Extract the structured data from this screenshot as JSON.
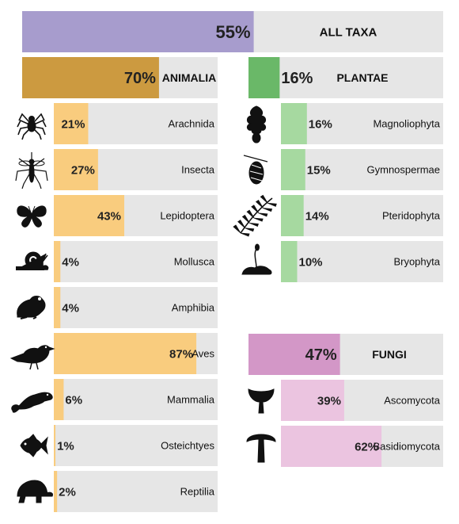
{
  "colors": {
    "track": "#e6e6e6",
    "all": "#a79ccd",
    "animalia_head": "#cc9a40",
    "animalia_sub": "#f9cc7e",
    "plantae_head": "#6ab868",
    "plantae_sub": "#a6d9a0",
    "fungi_head": "#d397c7",
    "fungi_sub": "#ebc4e0",
    "icon": "#111111"
  },
  "chart_data": {
    "type": "bar",
    "orientation": "horizontal",
    "xlim": [
      0,
      100
    ],
    "unit": "%",
    "all_taxa": {
      "label": "ALL TAXA",
      "value": 55,
      "value_label": "55%"
    },
    "groups": [
      {
        "key": "animalia",
        "label": "ANIMALIA",
        "value": 70,
        "value_label": "70%",
        "items": [
          {
            "label": "Arachnida",
            "value": 21,
            "value_label": "21%",
            "icon": "spider-icon"
          },
          {
            "label": "Insecta",
            "value": 27,
            "value_label": "27%",
            "icon": "mosquito-icon"
          },
          {
            "label": "Lepidoptera",
            "value": 43,
            "value_label": "43%",
            "icon": "butterfly-icon"
          },
          {
            "label": "Mollusca",
            "value": 4,
            "value_label": "4%",
            "icon": "snail-icon"
          },
          {
            "label": "Amphibia",
            "value": 4,
            "value_label": "4%",
            "icon": "frog-icon"
          },
          {
            "label": "Aves",
            "value": 87,
            "value_label": "87%",
            "icon": "bird-icon"
          },
          {
            "label": "Mammalia",
            "value": 6,
            "value_label": "6%",
            "icon": "otter-icon"
          },
          {
            "label": "Osteichtyes",
            "value": 1,
            "value_label": "1%",
            "icon": "fish-icon"
          },
          {
            "label": "Reptilia",
            "value": 2,
            "value_label": "2%",
            "icon": "tortoise-icon"
          }
        ]
      },
      {
        "key": "plantae",
        "label": "PLANTAE",
        "value": 16,
        "value_label": "16%",
        "items": [
          {
            "label": "Magnoliophyta",
            "value": 16,
            "value_label": "16%",
            "icon": "oak-leaf-icon"
          },
          {
            "label": "Gymnospermae",
            "value": 15,
            "value_label": "15%",
            "icon": "pine-cone-icon"
          },
          {
            "label": "Pteridophyta",
            "value": 14,
            "value_label": "14%",
            "icon": "fern-icon"
          },
          {
            "label": "Bryophyta",
            "value": 10,
            "value_label": "10%",
            "icon": "moss-icon"
          }
        ]
      },
      {
        "key": "fungi",
        "label": "FUNGI",
        "value": 47,
        "value_label": "47%",
        "items": [
          {
            "label": "Ascomycota",
            "value": 39,
            "value_label": "39%",
            "icon": "cup-fungus-icon"
          },
          {
            "label": "Basidiomycota",
            "value": 62,
            "value_label": "62%",
            "icon": "mushroom-icon"
          }
        ]
      }
    ]
  }
}
